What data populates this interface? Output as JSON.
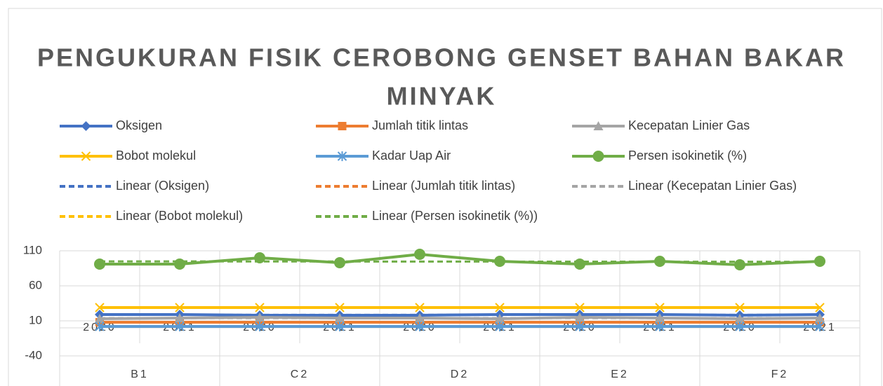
{
  "chart_data": {
    "type": "line",
    "title": "PENGUKURAN FISIK CEROBONG GENSET BAHAN BAKAR MINYAK",
    "categories": [
      "2020",
      "2021",
      "2020",
      "2021",
      "2020",
      "2021",
      "2020",
      "2021",
      "2020",
      "2021"
    ],
    "groups": [
      "B1",
      "C2",
      "D2",
      "E2",
      "F2"
    ],
    "series": [
      {
        "name": "Oksigen",
        "color": "#4472c4",
        "marker": "diamond",
        "values": [
          19,
          19,
          18,
          18,
          18,
          19,
          19,
          19,
          18,
          19
        ]
      },
      {
        "name": "Jumlah titik lintas",
        "color": "#ed7d31",
        "marker": "square",
        "values": [
          8,
          8,
          8,
          8,
          8,
          8,
          8,
          8,
          8,
          8
        ]
      },
      {
        "name": "Kecepatan Linier Gas",
        "color": "#a5a5a5",
        "marker": "triangle",
        "values": [
          13,
          14,
          15,
          14,
          14,
          13,
          15,
          14,
          13,
          14
        ]
      },
      {
        "name": "Bobot molekul",
        "color": "#ffc000",
        "marker": "x",
        "values": [
          29,
          29,
          29,
          29,
          29,
          29,
          29,
          29,
          29,
          29
        ]
      },
      {
        "name": "Kadar Uap Air",
        "color": "#5b9bd5",
        "marker": "asterisk",
        "values": [
          2,
          2,
          2,
          2,
          2,
          2,
          2,
          2,
          2,
          2
        ]
      },
      {
        "name": "Persen isokinetik (%)",
        "color": "#70ad47",
        "marker": "circle",
        "values": [
          91,
          91,
          100,
          93,
          105,
          95,
          91,
          95,
          90,
          95
        ]
      }
    ],
    "trendlines": [
      {
        "name": "Linear (Oksigen)",
        "series": 0
      },
      {
        "name": "Linear (Jumlah titik lintas)",
        "series": 1
      },
      {
        "name": "Linear (Kecepatan Linier Gas)",
        "series": 2
      },
      {
        "name": "Linear (Bobot molekul)",
        "series": 3
      },
      {
        "name": "Linear (Persen isokinetik (%))",
        "series": 5
      }
    ],
    "ylim": [
      -40,
      110
    ],
    "yticks": [
      -40,
      10,
      60,
      110
    ],
    "grid": true
  }
}
